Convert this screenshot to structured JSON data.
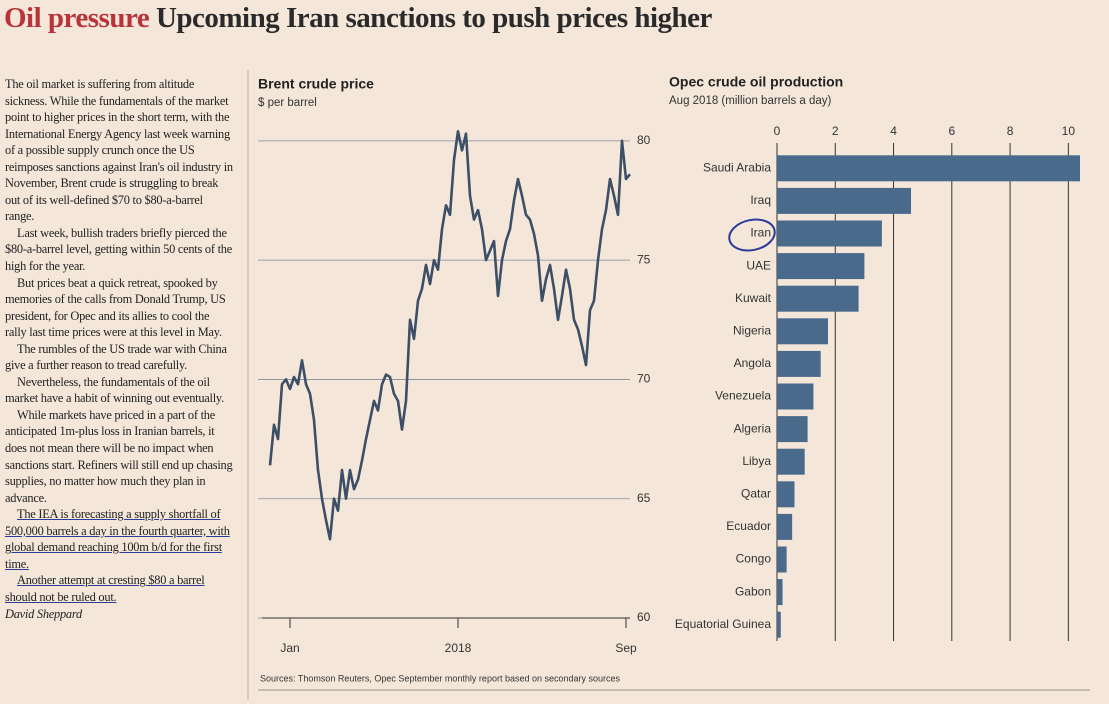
{
  "headline": {
    "kicker": "Oil pressure",
    "title": "Upcoming Iran sanctions to push prices higher"
  },
  "article": {
    "paragraphs": [
      "The oil market is suffering from altitude sickness. While the fundamentals of the market point to higher prices in the short term, with the International Energy Agency last week warning of a possible supply crunch once the US reimposes sanctions against Iran's oil industry in November, Brent crude is struggling to break out of its well-defined $70 to $80-a-barrel range.",
      "Last week, bullish traders briefly pierced the $80-a-barrel level, getting within 50 cents of the high for the year.",
      "But prices beat a quick retreat, spooked by memories of the calls from Donald Trump, US president, for Opec and its allies to cool the rally last time prices were at this level in May.",
      "The rumbles of the US trade war with China give a further reason to tread carefully.",
      "Nevertheless, the fundamentals of the oil market have a habit of winning out eventually.",
      "While markets have priced in a part of the anticipated 1m-plus loss in Iranian barrels, it does not mean there will be no impact when sanctions start. Refiners will still end up chasing supplies, no matter how much they plan in advance.",
      "The IEA is forecasting a supply shortfall of 500,000 barrels a day in the fourth quarter, with global demand reaching 100m b/d for the first time.",
      "Another attempt at cresting $80 a barrel should not be ruled out."
    ],
    "byline": "David Sheppard"
  },
  "source": "Sources: Thomson Reuters, Opec September monthly report based on secondary sources",
  "chart_data": [
    {
      "type": "line",
      "title": "Brent crude price",
      "subtitle": "$ per barrel",
      "color": "#3d4f66",
      "values": [
        66.4,
        68.1,
        67.5,
        69.8,
        70.0,
        69.6,
        70.1,
        69.8,
        70.8,
        69.8,
        69.4,
        68.3,
        66.2,
        65.0,
        64.1,
        63.3,
        65.0,
        64.5,
        66.2,
        65.0,
        66.2,
        65.4,
        65.8,
        66.6,
        67.5,
        68.3,
        69.1,
        68.7,
        69.8,
        70.2,
        70.1,
        69.4,
        69.1,
        67.9,
        69.1,
        72.5,
        71.7,
        73.3,
        73.8,
        74.8,
        74.0,
        75.0,
        74.6,
        76.3,
        77.3,
        76.9,
        79.2,
        80.4,
        79.6,
        80.3,
        77.7,
        76.7,
        77.1,
        76.3,
        75.0,
        75.4,
        75.8,
        73.5,
        75.0,
        75.8,
        76.3,
        77.5,
        78.4,
        77.7,
        76.9,
        76.7,
        76.1,
        75.2,
        73.3,
        74.2,
        74.8,
        73.8,
        72.5,
        73.5,
        74.6,
        73.8,
        72.5,
        72.1,
        71.4,
        70.6,
        72.9,
        73.3,
        75.0,
        76.3,
        77.1,
        78.4,
        77.7,
        76.9,
        80.0,
        78.4,
        78.6
      ],
      "xlim": [
        0,
        90
      ],
      "xticks": [
        {
          "value": 5,
          "label": "Jan"
        },
        {
          "value": 47,
          "label": "2018"
        },
        {
          "value": 89,
          "label": "Sep"
        }
      ],
      "ylim": [
        60,
        81
      ],
      "yticks": [
        60,
        65,
        70,
        75,
        80
      ],
      "grid": true
    },
    {
      "type": "bar",
      "orientation": "horizontal",
      "title": "Opec crude oil production",
      "subtitle": "Aug 2018 (million barrels a day)",
      "color": "#4a6a8c",
      "categories": [
        "Saudi Arabia",
        "Iraq",
        "Iran",
        "UAE",
        "Kuwait",
        "Nigeria",
        "Angola",
        "Venezuela",
        "Algeria",
        "Libya",
        "Qatar",
        "Ecuador",
        "Congo",
        "Gabon",
        "Equatorial Guinea"
      ],
      "values": [
        10.4,
        4.6,
        3.6,
        3.0,
        2.8,
        1.75,
        1.5,
        1.25,
        1.05,
        0.95,
        0.6,
        0.52,
        0.33,
        0.19,
        0.13
      ],
      "xlim": [
        0,
        10.4
      ],
      "xticks": [
        0,
        2,
        4,
        6,
        8,
        10
      ],
      "grid": true
    }
  ]
}
